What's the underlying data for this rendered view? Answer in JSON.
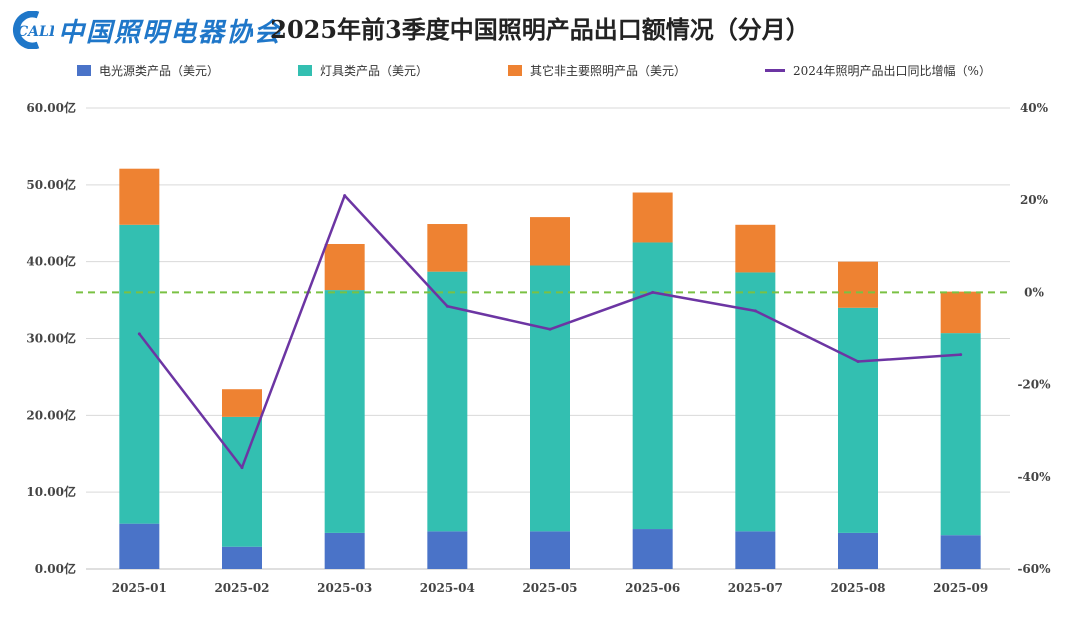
{
  "logo": {
    "abbr": "CALI",
    "text": "中国照明电器协会"
  },
  "colors": {
    "light_source": "#4a73c8",
    "lamps": "#33bfb1",
    "other": "#ee8232",
    "growth": "#6c35a3",
    "zero_line": "#7ac143",
    "grid": "#d9d9d9",
    "logo": "#1f77c9"
  },
  "chart_data": {
    "type": "bar",
    "stacked": true,
    "title": "2025年前3季度中国照明产品出口额情况（分月）",
    "categories": [
      "2025-01",
      "2025-02",
      "2025-03",
      "2025-04",
      "2025-05",
      "2025-06",
      "2025-07",
      "2025-08",
      "2025-09"
    ],
    "series": [
      {
        "name": "电光源类产品（美元）",
        "axis": "left",
        "values": [
          5.9,
          2.9,
          4.7,
          4.9,
          4.9,
          5.2,
          4.9,
          4.7,
          4.4
        ]
      },
      {
        "name": "灯具类产品（美元）",
        "axis": "left",
        "values": [
          38.9,
          16.9,
          31.6,
          33.8,
          34.6,
          37.3,
          33.7,
          29.3,
          26.3
        ]
      },
      {
        "name": "其它非主要照明产品（美元）",
        "axis": "left",
        "values": [
          7.3,
          3.6,
          6.0,
          6.2,
          6.3,
          6.5,
          6.2,
          6.0,
          5.4
        ]
      }
    ],
    "line_series": {
      "name": "2024年照明产品出口同比增幅（%）",
      "axis": "right",
      "type": "line",
      "values": [
        -9,
        -38,
        21,
        -3,
        -8,
        0,
        -4,
        -15,
        -13.5
      ]
    },
    "reference_line": {
      "axis": "right",
      "value": 0,
      "style": "dashed"
    },
    "ylim_left": [
      0,
      60
    ],
    "yticks_left": [
      "0.00亿",
      "10.00亿",
      "20.00亿",
      "30.00亿",
      "40.00亿",
      "50.00亿",
      "60.00亿"
    ],
    "ylim_right": [
      -60,
      40
    ],
    "yticks_right": [
      "-60%",
      "-40%",
      "-20%",
      "0%",
      "20%",
      "40%"
    ],
    "legend_position": "top",
    "grid": true
  }
}
